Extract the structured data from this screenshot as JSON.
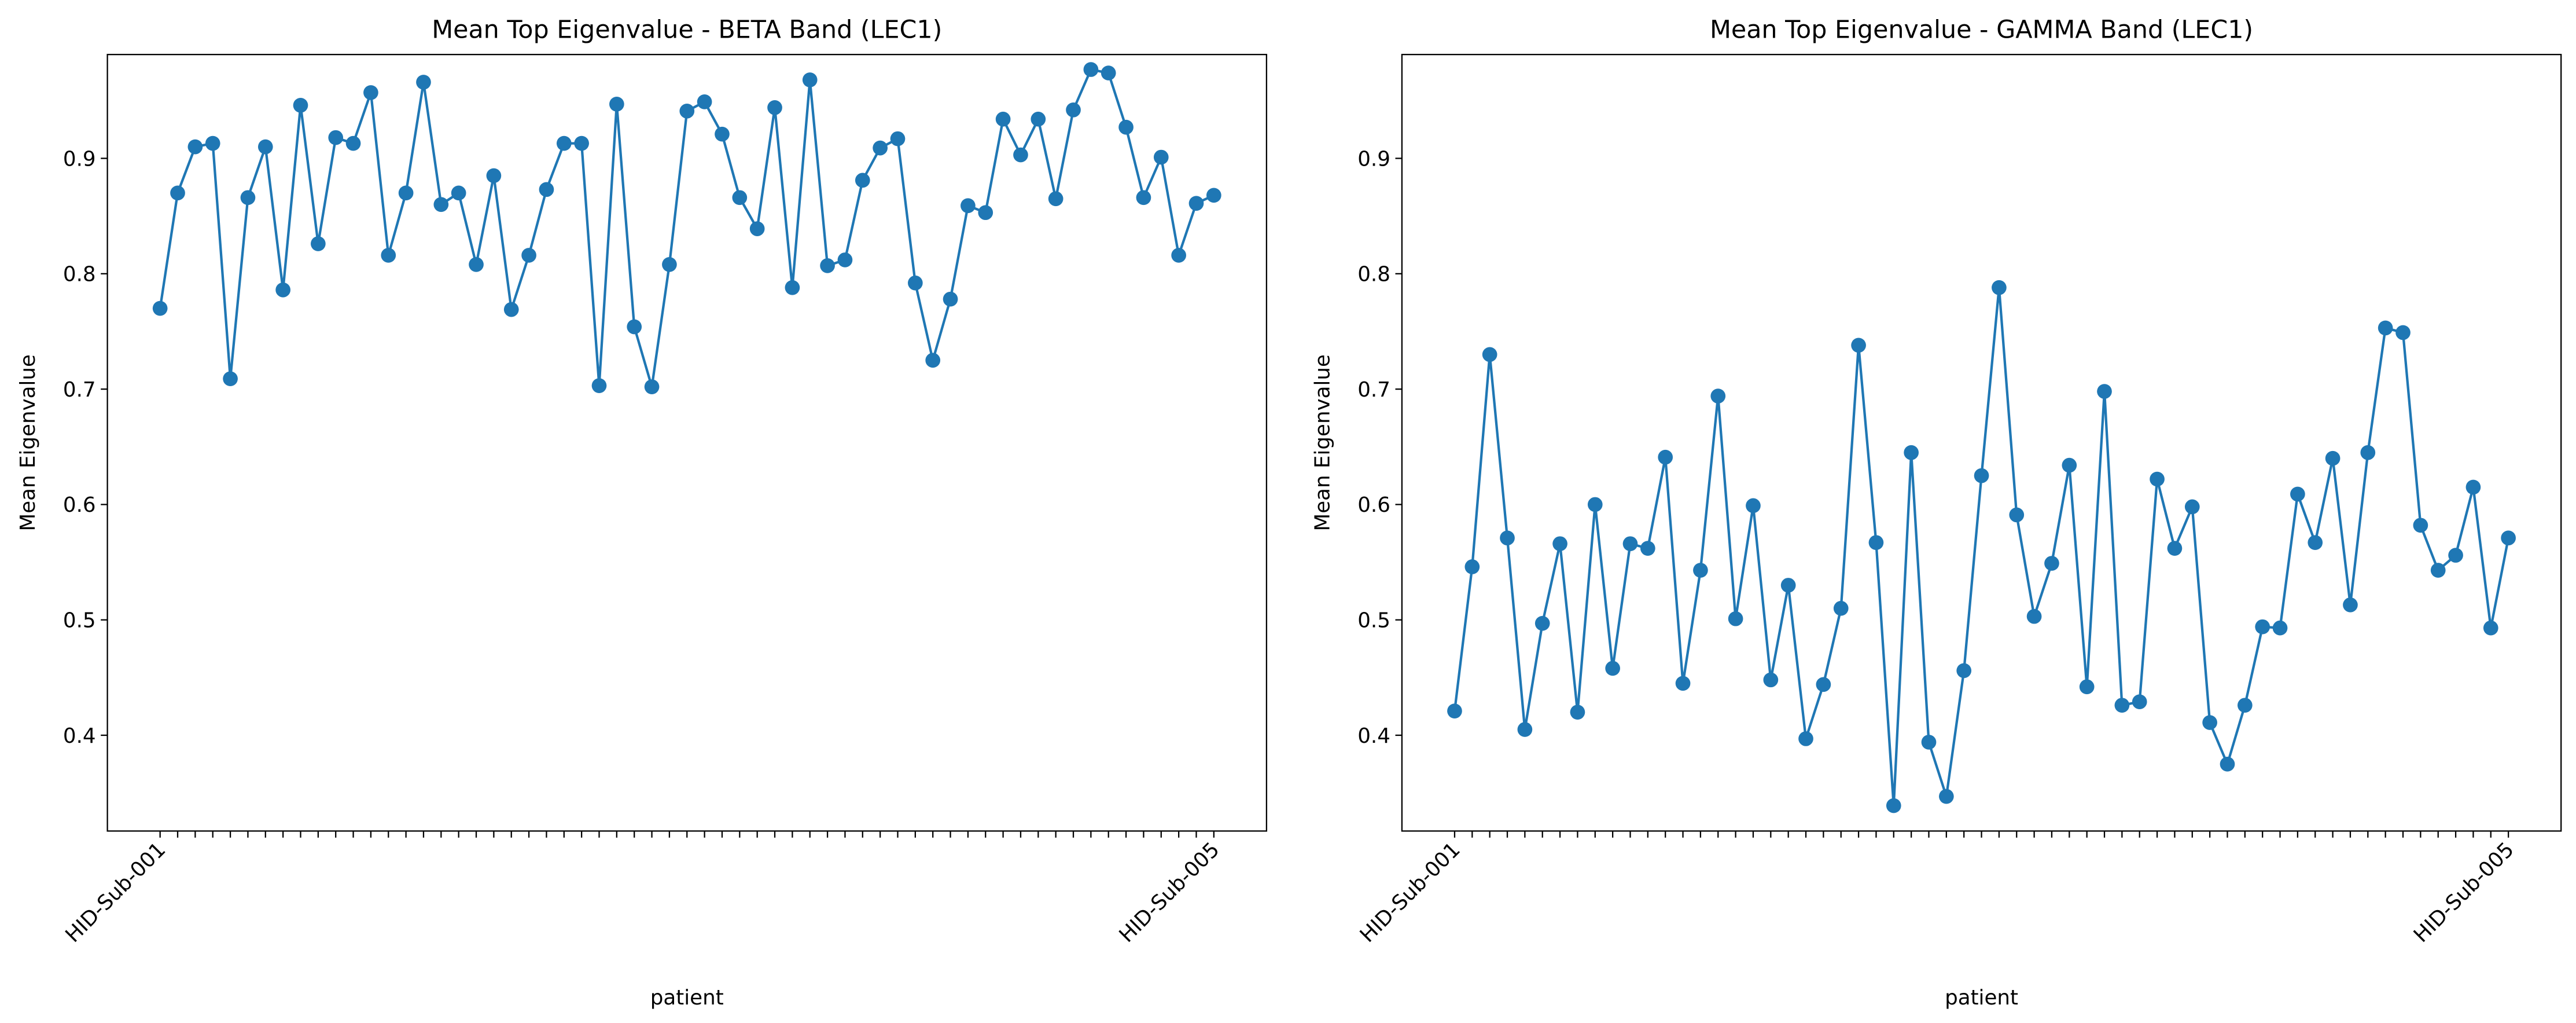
{
  "chart_data": [
    {
      "type": "line",
      "title": "Mean Top Eigenvalue - BETA Band (LEC1)",
      "xlabel": "patient",
      "ylabel": "Mean Eigenvalue",
      "categories": [
        "HID-Sub-001",
        null,
        null,
        null,
        null,
        null,
        null,
        null,
        null,
        null,
        null,
        null,
        null,
        null,
        null,
        null,
        null,
        null,
        null,
        null,
        null,
        null,
        null,
        null,
        null,
        null,
        null,
        null,
        null,
        null,
        null,
        null,
        null,
        null,
        null,
        null,
        null,
        null,
        null,
        null,
        null,
        null,
        null,
        null,
        null,
        null,
        null,
        null,
        null,
        null,
        null,
        null,
        null,
        null,
        null,
        null,
        null,
        null,
        null,
        null,
        "HID-Sub-005"
      ],
      "values": [
        0.77,
        0.87,
        0.91,
        0.913,
        0.709,
        0.866,
        0.91,
        0.786,
        0.946,
        0.826,
        0.918,
        0.913,
        0.957,
        0.816,
        0.87,
        0.966,
        0.86,
        0.87,
        0.808,
        0.885,
        0.769,
        0.816,
        0.873,
        0.913,
        0.913,
        0.703,
        0.947,
        0.754,
        0.702,
        0.808,
        0.941,
        0.949,
        0.921,
        0.866,
        0.839,
        0.944,
        0.788,
        0.968,
        0.807,
        0.812,
        0.881,
        0.909,
        0.917,
        0.792,
        0.725,
        0.778,
        0.859,
        0.853,
        0.934,
        0.903,
        0.934,
        0.865,
        0.942,
        0.977,
        0.974,
        0.927,
        0.866,
        0.901,
        0.816,
        0.861,
        0.868
      ],
      "color": "#1f77b4",
      "ylim": [
        0.317,
        0.99
      ],
      "yticks": [
        0.4,
        0.5,
        0.6,
        0.7,
        0.8,
        0.9
      ]
    },
    {
      "type": "line",
      "title": "Mean Top Eigenvalue - GAMMA Band (LEC1)",
      "xlabel": "patient",
      "ylabel": "Mean Eigenvalue",
      "categories": [
        "HID-Sub-001",
        null,
        null,
        null,
        null,
        null,
        null,
        null,
        null,
        null,
        null,
        null,
        null,
        null,
        null,
        null,
        null,
        null,
        null,
        null,
        null,
        null,
        null,
        null,
        null,
        null,
        null,
        null,
        null,
        null,
        null,
        null,
        null,
        null,
        null,
        null,
        null,
        null,
        null,
        null,
        null,
        null,
        null,
        null,
        null,
        null,
        null,
        null,
        null,
        null,
        null,
        null,
        null,
        null,
        null,
        null,
        null,
        null,
        null,
        null,
        "HID-Sub-005"
      ],
      "values": [
        0.421,
        0.546,
        0.73,
        0.571,
        0.405,
        0.497,
        0.566,
        0.42,
        0.6,
        0.458,
        0.566,
        0.562,
        0.641,
        0.445,
        0.543,
        0.694,
        0.501,
        0.599,
        0.448,
        0.53,
        0.397,
        0.444,
        0.51,
        0.738,
        0.567,
        0.339,
        0.645,
        0.394,
        0.347,
        0.456,
        0.625,
        0.788,
        0.591,
        0.503,
        0.549,
        0.634,
        0.442,
        0.698,
        0.426,
        0.429,
        0.622,
        0.562,
        0.598,
        0.411,
        0.375,
        0.426,
        0.494,
        0.493,
        0.609,
        0.567,
        0.64,
        0.513,
        0.645,
        0.753,
        0.749,
        0.582,
        0.543,
        0.556,
        0.615,
        0.493,
        0.571
      ],
      "color": "#1f77b4",
      "ylim": [
        0.317,
        0.99
      ],
      "yticks": [
        0.4,
        0.5,
        0.6,
        0.7,
        0.8,
        0.9
      ]
    }
  ]
}
